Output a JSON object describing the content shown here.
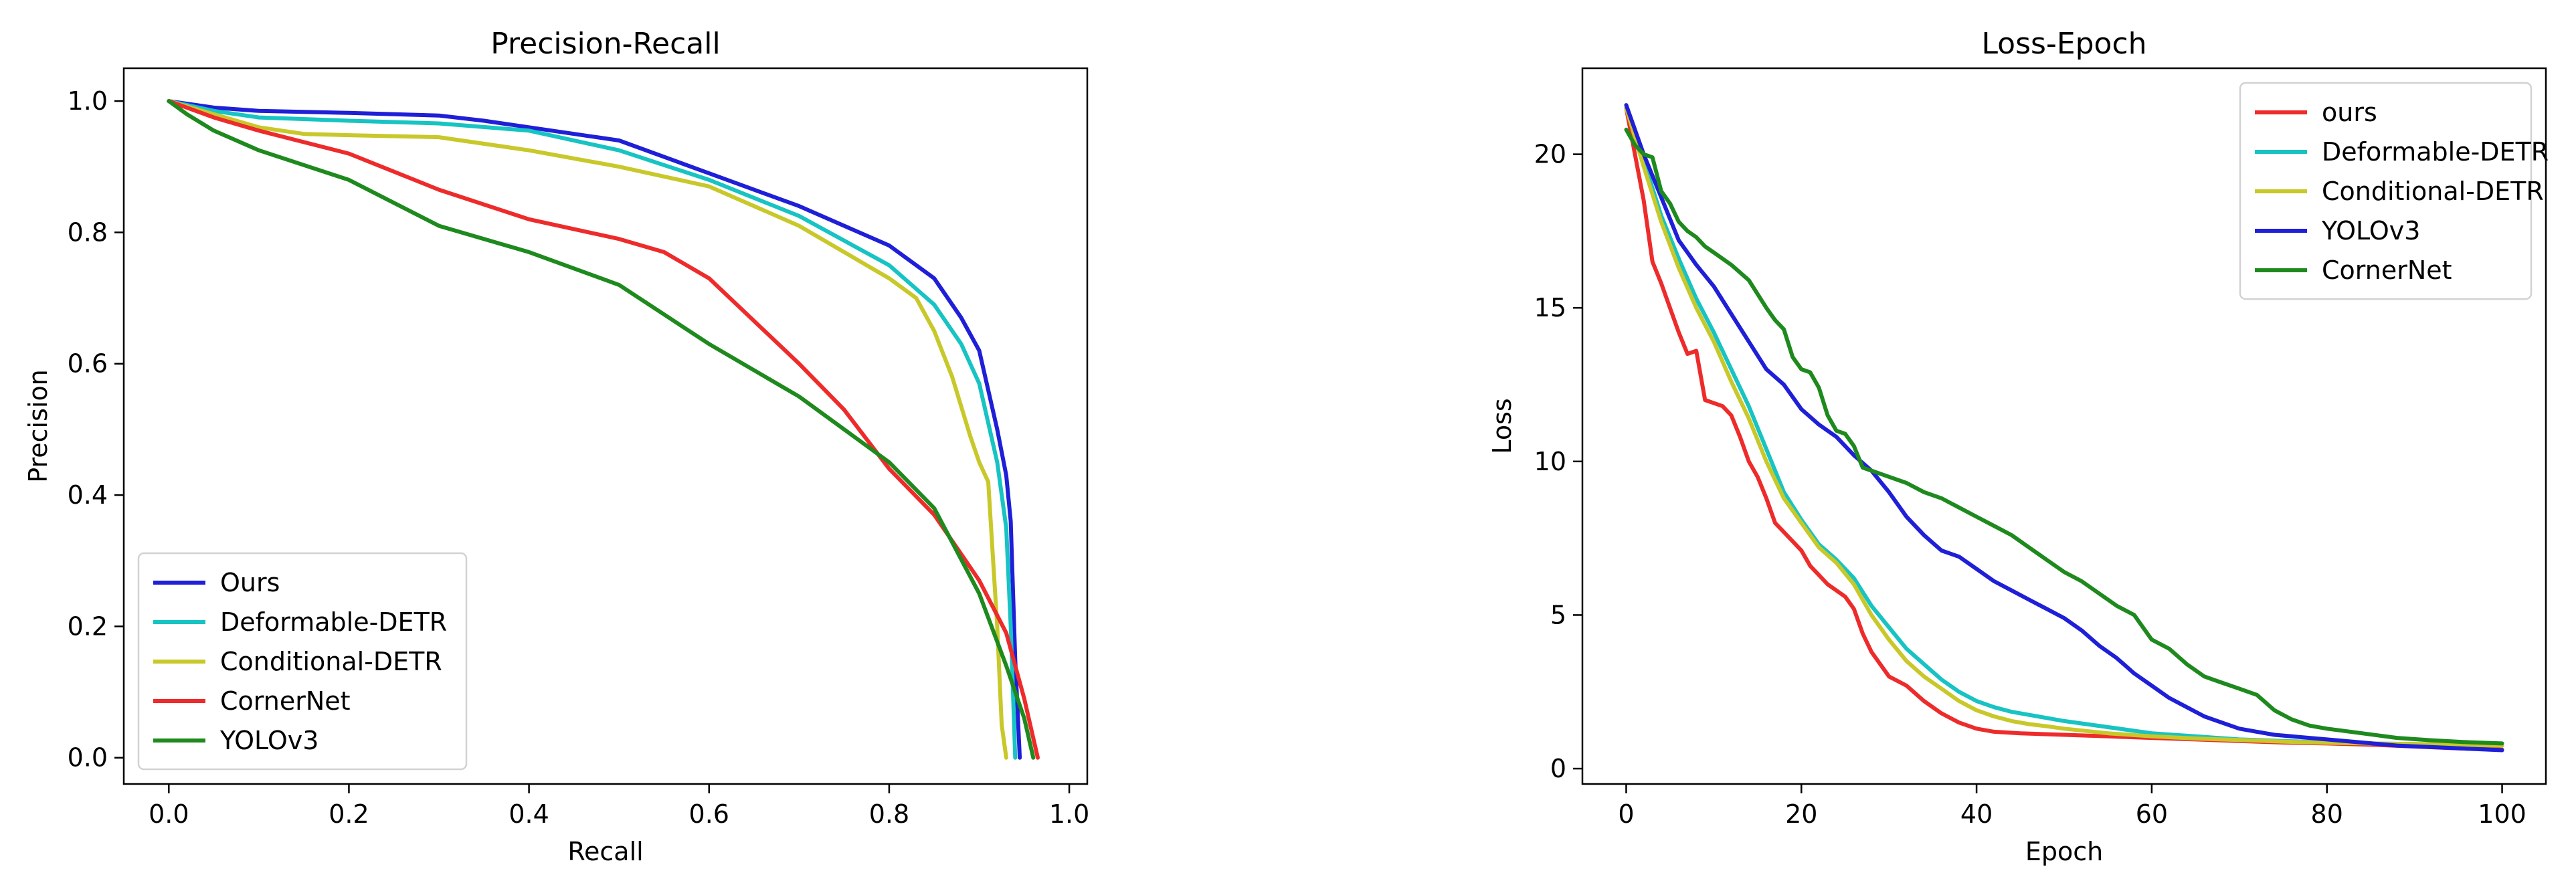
{
  "chart_data": [
    {
      "type": "line",
      "title": "Precision-Recall",
      "xlabel": "Recall",
      "ylabel": "Precision",
      "xlim": [
        -0.05,
        1.02
      ],
      "ylim": [
        -0.04,
        1.05
      ],
      "xticks": [
        0.0,
        0.2,
        0.4,
        0.6,
        0.8,
        1.0
      ],
      "xtick_labels": [
        "0.0",
        "0.2",
        "0.4",
        "0.6",
        "0.8",
        "1.0"
      ],
      "yticks": [
        0.0,
        0.2,
        0.4,
        0.6,
        0.8,
        1.0
      ],
      "ytick_labels": [
        "0.0",
        "0.2",
        "0.4",
        "0.6",
        "0.8",
        "1.0"
      ],
      "grid": false,
      "legend": "lower-left",
      "series": [
        {
          "name": "Ours",
          "color": "#1f1fd8",
          "x": [
            0.0,
            0.05,
            0.1,
            0.2,
            0.3,
            0.35,
            0.4,
            0.5,
            0.6,
            0.7,
            0.8,
            0.85,
            0.88,
            0.9,
            0.92,
            0.93,
            0.935,
            0.94,
            0.945
          ],
          "y": [
            1.0,
            0.99,
            0.985,
            0.982,
            0.978,
            0.97,
            0.96,
            0.94,
            0.89,
            0.84,
            0.78,
            0.73,
            0.67,
            0.62,
            0.5,
            0.43,
            0.36,
            0.15,
            0.0
          ]
        },
        {
          "name": "Deformable-DETR",
          "color": "#17c3c3",
          "x": [
            0.0,
            0.05,
            0.1,
            0.2,
            0.3,
            0.4,
            0.5,
            0.6,
            0.7,
            0.8,
            0.85,
            0.88,
            0.9,
            0.92,
            0.93,
            0.935,
            0.94
          ],
          "y": [
            1.0,
            0.985,
            0.975,
            0.97,
            0.966,
            0.955,
            0.925,
            0.88,
            0.825,
            0.75,
            0.69,
            0.63,
            0.57,
            0.45,
            0.35,
            0.2,
            0.0
          ]
        },
        {
          "name": "Conditional-DETR",
          "color": "#c8c82a",
          "x": [
            0.0,
            0.05,
            0.1,
            0.15,
            0.2,
            0.3,
            0.4,
            0.5,
            0.6,
            0.7,
            0.8,
            0.83,
            0.85,
            0.87,
            0.89,
            0.9,
            0.91,
            0.92,
            0.925,
            0.93
          ],
          "y": [
            1.0,
            0.98,
            0.96,
            0.95,
            0.948,
            0.945,
            0.925,
            0.9,
            0.87,
            0.81,
            0.73,
            0.7,
            0.65,
            0.58,
            0.49,
            0.45,
            0.42,
            0.2,
            0.05,
            0.0
          ]
        },
        {
          "name": "CornerNet",
          "color": "#ee2b2b",
          "x": [
            0.0,
            0.05,
            0.1,
            0.2,
            0.3,
            0.4,
            0.5,
            0.55,
            0.6,
            0.7,
            0.75,
            0.8,
            0.85,
            0.9,
            0.93,
            0.95,
            0.965
          ],
          "y": [
            1.0,
            0.975,
            0.955,
            0.92,
            0.865,
            0.82,
            0.79,
            0.77,
            0.73,
            0.6,
            0.53,
            0.44,
            0.37,
            0.27,
            0.19,
            0.09,
            0.0
          ]
        },
        {
          "name": "YOLOv3",
          "color": "#1e8a1e",
          "x": [
            0.0,
            0.02,
            0.05,
            0.1,
            0.2,
            0.3,
            0.4,
            0.5,
            0.6,
            0.7,
            0.8,
            0.85,
            0.9,
            0.93,
            0.95,
            0.96
          ],
          "y": [
            1.0,
            0.98,
            0.955,
            0.925,
            0.88,
            0.81,
            0.77,
            0.72,
            0.63,
            0.55,
            0.45,
            0.38,
            0.25,
            0.14,
            0.06,
            0.0
          ]
        }
      ]
    },
    {
      "type": "line",
      "title": "Loss-Epoch",
      "xlabel": "Epoch",
      "ylabel": "Loss",
      "xlim": [
        -5,
        105
      ],
      "ylim": [
        -0.5,
        22.8
      ],
      "xticks": [
        0,
        20,
        40,
        60,
        80,
        100
      ],
      "xtick_labels": [
        "0",
        "20",
        "40",
        "60",
        "80",
        "100"
      ],
      "yticks": [
        0,
        5,
        10,
        15,
        20
      ],
      "ytick_labels": [
        "0",
        "5",
        "10",
        "15",
        "20"
      ],
      "grid": false,
      "legend": "upper-right",
      "series": [
        {
          "name": "ours",
          "color": "#ee2b2b",
          "x": [
            0,
            1,
            2,
            3,
            4,
            5,
            6,
            7,
            8,
            9,
            10,
            11,
            12,
            13,
            14,
            15,
            16,
            17,
            18,
            19,
            20,
            21,
            22,
            23,
            24,
            25,
            26,
            27,
            28,
            29,
            30,
            32,
            34,
            36,
            38,
            40,
            42,
            45,
            50,
            55,
            60,
            65,
            70,
            75,
            80,
            85,
            90,
            95,
            100
          ],
          "y": [
            21.5,
            20.0,
            18.5,
            16.5,
            15.8,
            15.0,
            14.2,
            13.5,
            13.6,
            12.0,
            11.9,
            11.8,
            11.5,
            10.8,
            10.0,
            9.5,
            8.8,
            8.0,
            7.7,
            7.4,
            7.1,
            6.6,
            6.3,
            6.0,
            5.8,
            5.6,
            5.2,
            4.4,
            3.8,
            3.4,
            3.0,
            2.7,
            2.2,
            1.8,
            1.5,
            1.3,
            1.2,
            1.15,
            1.1,
            1.05,
            1.0,
            0.95,
            0.9,
            0.85,
            0.82,
            0.78,
            0.72,
            0.66,
            0.62
          ]
        },
        {
          "name": "Deformable-DETR",
          "color": "#17c3c3",
          "x": [
            0,
            2,
            4,
            6,
            8,
            10,
            12,
            14,
            16,
            18,
            20,
            22,
            24,
            26,
            28,
            30,
            32,
            34,
            36,
            38,
            40,
            42,
            44,
            46,
            48,
            50,
            55,
            60,
            65,
            70,
            75,
            80,
            85,
            90,
            95,
            100
          ],
          "y": [
            21.5,
            19.8,
            18.0,
            16.6,
            15.3,
            14.2,
            13.0,
            11.8,
            10.4,
            9.0,
            8.1,
            7.3,
            6.8,
            6.2,
            5.3,
            4.6,
            3.9,
            3.4,
            2.9,
            2.5,
            2.2,
            2.0,
            1.85,
            1.75,
            1.65,
            1.55,
            1.35,
            1.15,
            1.05,
            0.95,
            0.9,
            0.85,
            0.82,
            0.8,
            0.78,
            0.75
          ]
        },
        {
          "name": "Conditional-DETR",
          "color": "#c8c82a",
          "x": [
            0,
            2,
            4,
            6,
            8,
            10,
            12,
            14,
            16,
            18,
            20,
            22,
            24,
            26,
            28,
            30,
            32,
            34,
            36,
            38,
            40,
            42,
            44,
            46,
            48,
            50,
            55,
            60,
            65,
            70,
            75,
            80,
            85,
            90,
            95,
            100
          ],
          "y": [
            21.5,
            19.6,
            17.8,
            16.3,
            15.0,
            13.9,
            12.6,
            11.4,
            10.0,
            8.8,
            8.0,
            7.2,
            6.7,
            6.0,
            5.0,
            4.2,
            3.5,
            3.0,
            2.6,
            2.2,
            1.9,
            1.7,
            1.55,
            1.45,
            1.38,
            1.3,
            1.15,
            1.05,
            0.98,
            0.93,
            0.88,
            0.84,
            0.82,
            0.8,
            0.78,
            0.75
          ]
        },
        {
          "name": "YOLOv3",
          "color": "#1f1fd8",
          "x": [
            0,
            2,
            4,
            6,
            8,
            10,
            12,
            14,
            16,
            18,
            20,
            22,
            24,
            26,
            28,
            30,
            32,
            34,
            36,
            38,
            40,
            42,
            44,
            46,
            48,
            50,
            52,
            54,
            56,
            58,
            60,
            62,
            64,
            66,
            68,
            70,
            72,
            74,
            76,
            78,
            80,
            84,
            88,
            92,
            96,
            100
          ],
          "y": [
            21.6,
            20.0,
            18.6,
            17.2,
            16.4,
            15.7,
            14.8,
            13.9,
            13.0,
            12.5,
            11.7,
            11.2,
            10.8,
            10.2,
            9.7,
            9.0,
            8.2,
            7.6,
            7.1,
            6.9,
            6.5,
            6.1,
            5.8,
            5.5,
            5.2,
            4.9,
            4.5,
            4.0,
            3.6,
            3.1,
            2.7,
            2.3,
            2.0,
            1.7,
            1.5,
            1.3,
            1.2,
            1.1,
            1.05,
            1.0,
            0.95,
            0.85,
            0.75,
            0.7,
            0.65,
            0.6
          ]
        },
        {
          "name": "CornerNet",
          "color": "#1e8a1e",
          "x": [
            0,
            1,
            2,
            3,
            4,
            5,
            6,
            7,
            8,
            9,
            10,
            12,
            14,
            16,
            17,
            18,
            19,
            20,
            21,
            22,
            23,
            24,
            25,
            26,
            27,
            28,
            30,
            32,
            34,
            36,
            38,
            40,
            42,
            44,
            46,
            48,
            50,
            52,
            54,
            56,
            58,
            60,
            62,
            64,
            66,
            68,
            70,
            72,
            74,
            76,
            78,
            80,
            84,
            88,
            92,
            96,
            100
          ],
          "y": [
            20.8,
            20.3,
            20.0,
            19.9,
            18.8,
            18.4,
            17.8,
            17.5,
            17.3,
            17.0,
            16.8,
            16.4,
            15.9,
            15.0,
            14.6,
            14.3,
            13.4,
            13.0,
            12.9,
            12.4,
            11.5,
            11.0,
            10.9,
            10.5,
            9.8,
            9.7,
            9.5,
            9.3,
            9.0,
            8.8,
            8.5,
            8.2,
            7.9,
            7.6,
            7.2,
            6.8,
            6.4,
            6.1,
            5.7,
            5.3,
            5.0,
            4.2,
            3.9,
            3.4,
            3.0,
            2.8,
            2.6,
            2.4,
            1.9,
            1.6,
            1.4,
            1.3,
            1.15,
            1.0,
            0.92,
            0.86,
            0.82
          ]
        }
      ]
    }
  ]
}
